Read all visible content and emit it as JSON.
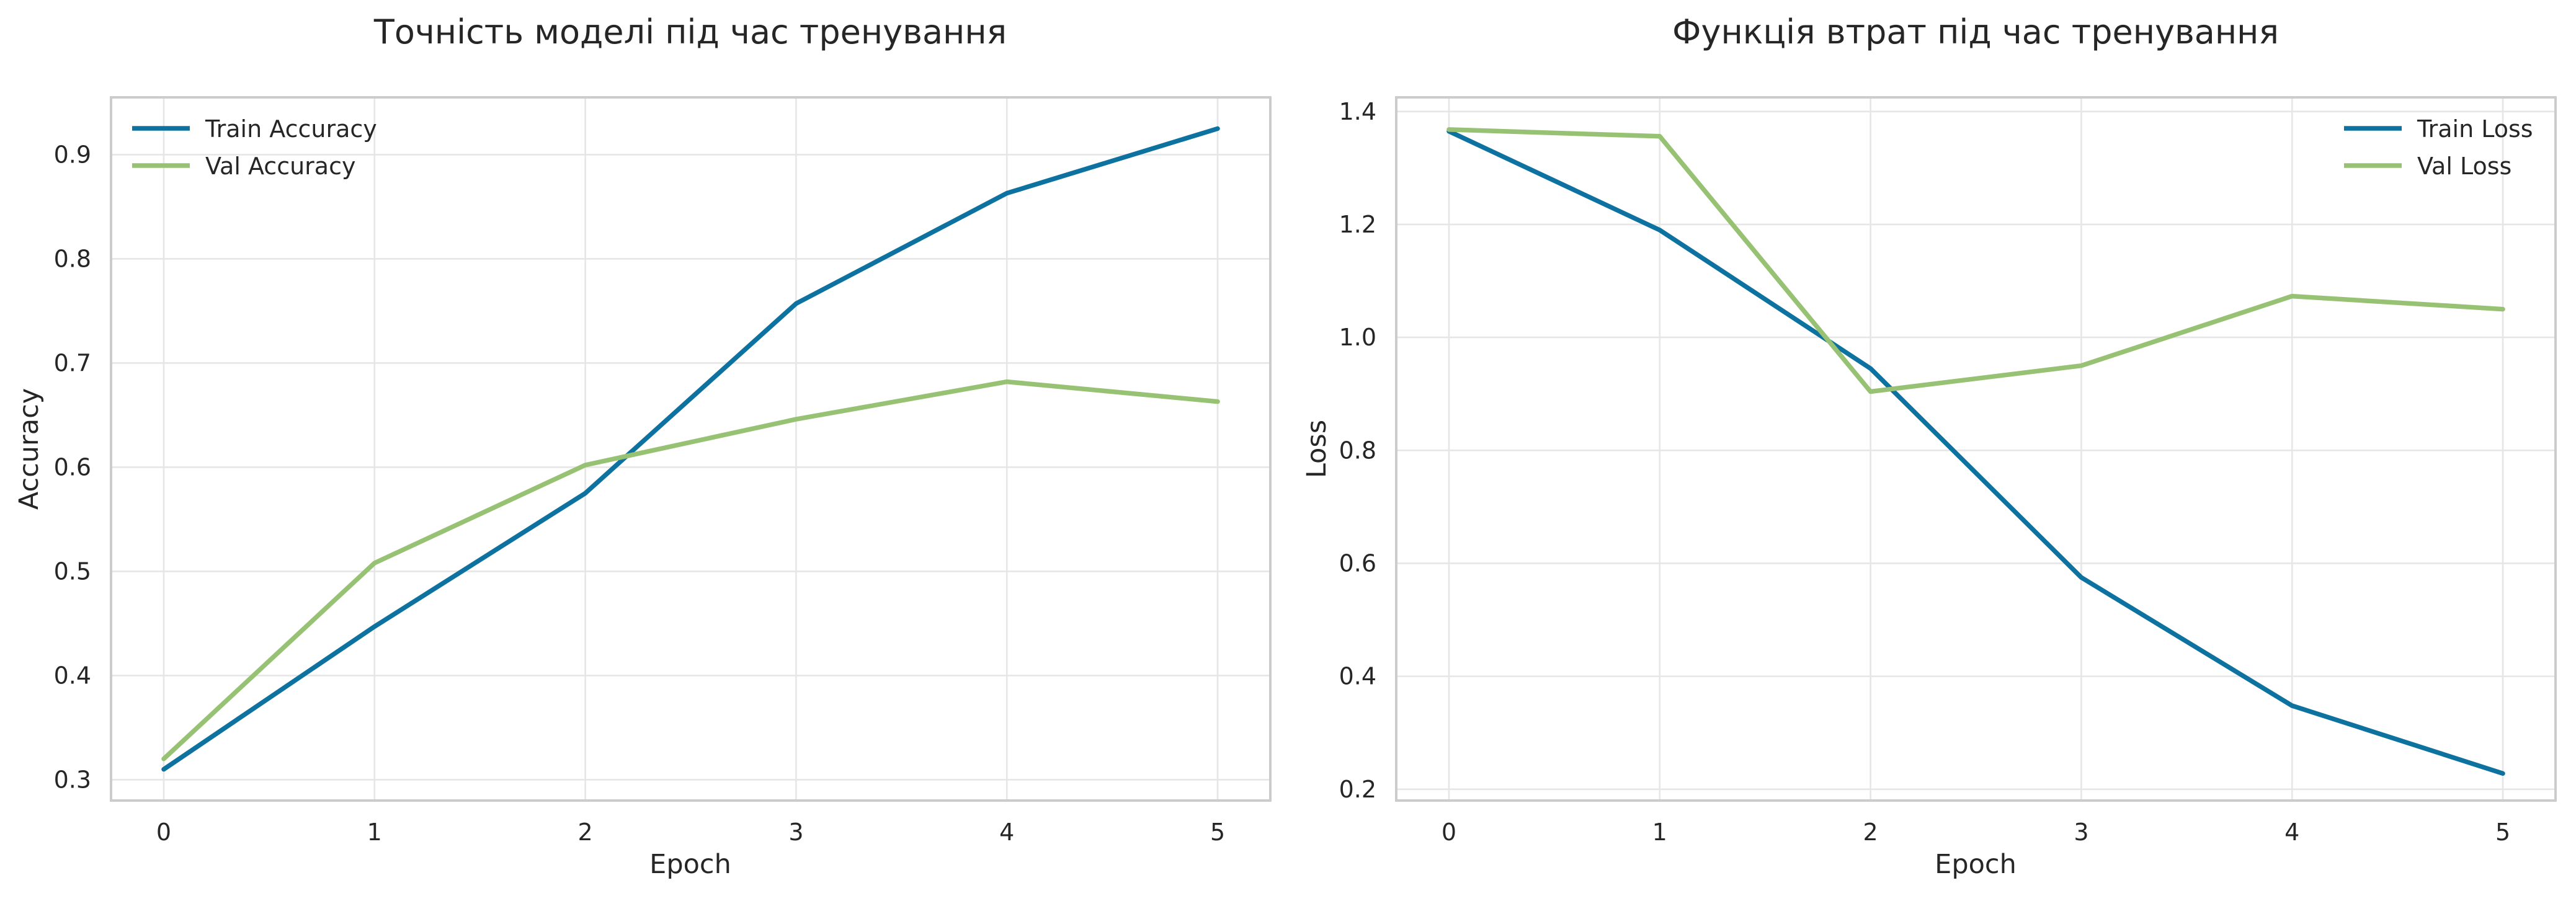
{
  "chart_data": [
    {
      "type": "line",
      "title": "Точність моделі під час тренування",
      "xlabel": "Epoch",
      "ylabel": "Accuracy",
      "x": [
        0,
        1,
        2,
        3,
        4,
        5
      ],
      "xlim": [
        -0.25,
        5.25
      ],
      "ylim": [
        0.28,
        0.955
      ],
      "xticks": [
        0,
        1,
        2,
        3,
        4,
        5
      ],
      "yticks": [
        0.3,
        0.4,
        0.5,
        0.6,
        0.7,
        0.8,
        0.9
      ],
      "grid": true,
      "legend_position": "top-left",
      "series": [
        {
          "name": "Train Accuracy",
          "color": "#0e72a0",
          "values": [
            0.31,
            0.447,
            0.575,
            0.757,
            0.863,
            0.925
          ]
        },
        {
          "name": "Val Accuracy",
          "color": "#97c173",
          "values": [
            0.32,
            0.508,
            0.602,
            0.646,
            0.682,
            0.663
          ]
        }
      ]
    },
    {
      "type": "line",
      "title": "Функція втрат під час тренування",
      "xlabel": "Epoch",
      "ylabel": "Loss",
      "x": [
        0,
        1,
        2,
        3,
        4,
        5
      ],
      "xlim": [
        -0.25,
        5.25
      ],
      "ylim": [
        0.18,
        1.425
      ],
      "xticks": [
        0,
        1,
        2,
        3,
        4,
        5
      ],
      "yticks": [
        0.2,
        0.4,
        0.6,
        0.8,
        1.0,
        1.2,
        1.4
      ],
      "grid": true,
      "legend_position": "top-right",
      "series": [
        {
          "name": "Train Loss",
          "color": "#0e72a0",
          "values": [
            1.365,
            1.19,
            0.945,
            0.575,
            0.348,
            0.228
          ]
        },
        {
          "name": "Val Loss",
          "color": "#97c173",
          "values": [
            1.368,
            1.356,
            0.904,
            0.95,
            1.073,
            1.05
          ]
        }
      ]
    }
  ]
}
